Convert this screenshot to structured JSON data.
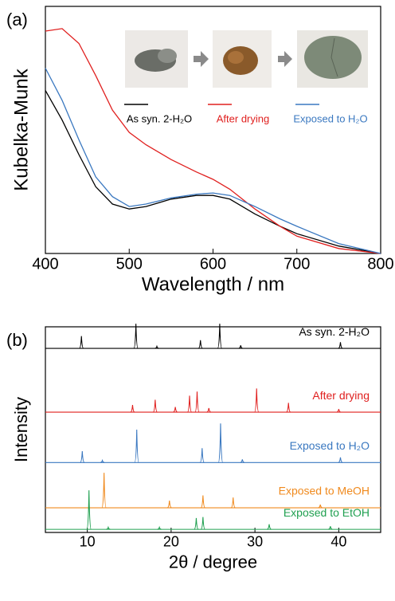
{
  "chart_data": [
    {
      "type": "line",
      "panel_label": "(a)",
      "xlabel": "Wavelength / nm",
      "ylabel": "Kubelka-Munk",
      "xlim": [
        400,
        800
      ],
      "xticks": [
        400,
        500,
        600,
        700,
        800
      ],
      "ylim": [
        0,
        1
      ],
      "x": [
        400,
        420,
        440,
        460,
        480,
        500,
        520,
        550,
        580,
        600,
        620,
        650,
        680,
        700,
        750,
        800
      ],
      "series": [
        {
          "name": "As syn. 2-H₂O",
          "color": "#000000",
          "values": [
            0.66,
            0.54,
            0.4,
            0.27,
            0.2,
            0.18,
            0.19,
            0.22,
            0.235,
            0.235,
            0.22,
            0.16,
            0.11,
            0.08,
            0.03,
            0.0
          ]
        },
        {
          "name": "After drying",
          "color": "#e0201f",
          "values": [
            0.9,
            0.91,
            0.85,
            0.72,
            0.58,
            0.49,
            0.44,
            0.38,
            0.33,
            0.3,
            0.26,
            0.18,
            0.11,
            0.07,
            0.02,
            0.0
          ]
        },
        {
          "name": "Exposed to H₂O",
          "color": "#3a78c0",
          "values": [
            0.75,
            0.62,
            0.46,
            0.31,
            0.23,
            0.19,
            0.2,
            0.225,
            0.24,
            0.245,
            0.235,
            0.19,
            0.14,
            0.11,
            0.04,
            0.0
          ]
        }
      ]
    },
    {
      "type": "waterfall",
      "panel_label": "(b)",
      "xlabel": "2θ / degree",
      "ylabel": "Intensity",
      "xlim": [
        5,
        45
      ],
      "xticks": [
        10,
        20,
        30,
        40
      ],
      "ylim": [
        0,
        10
      ],
      "series": [
        {
          "name": "As syn. 2-H₂O",
          "color": "#000000",
          "baseline": 8.95,
          "x": [
            9.3,
            15.8,
            18.3,
            23.5,
            25.8,
            28.3,
            40.2
          ],
          "values": [
            0.6,
            1.2,
            0.1,
            0.4,
            1.2,
            0.15,
            0.3
          ]
        },
        {
          "name": "After drying",
          "color": "#e0201f",
          "baseline": 5.85,
          "x": [
            15.4,
            18.1,
            20.5,
            22.2,
            23.1,
            24.5,
            30.2,
            34.0,
            40.0
          ],
          "values": [
            0.35,
            0.6,
            0.25,
            0.8,
            1.0,
            0.2,
            1.15,
            0.45,
            0.15
          ]
        },
        {
          "name": "Exposed to H₂O",
          "color": "#3a78c0",
          "baseline": 3.4,
          "x": [
            9.4,
            11.8,
            15.9,
            23.7,
            25.9,
            28.5,
            40.2
          ],
          "values": [
            0.55,
            0.1,
            1.6,
            0.7,
            1.9,
            0.15,
            0.25
          ]
        },
        {
          "name": "Exposed to MeOH",
          "color": "#f08a1e",
          "baseline": 1.2,
          "x": [
            12.0,
            19.8,
            23.8,
            27.4,
            37.8
          ],
          "values": [
            1.7,
            0.35,
            0.6,
            0.5,
            0.15
          ]
        },
        {
          "name": "Exposed to EtOH",
          "color": "#20a050",
          "baseline": 0.15,
          "x": [
            10.2,
            12.5,
            18.6,
            23.0,
            23.8,
            31.7,
            39.0
          ],
          "values": [
            1.9,
            0.1,
            0.1,
            0.55,
            0.6,
            0.25,
            0.15
          ]
        }
      ]
    }
  ]
}
